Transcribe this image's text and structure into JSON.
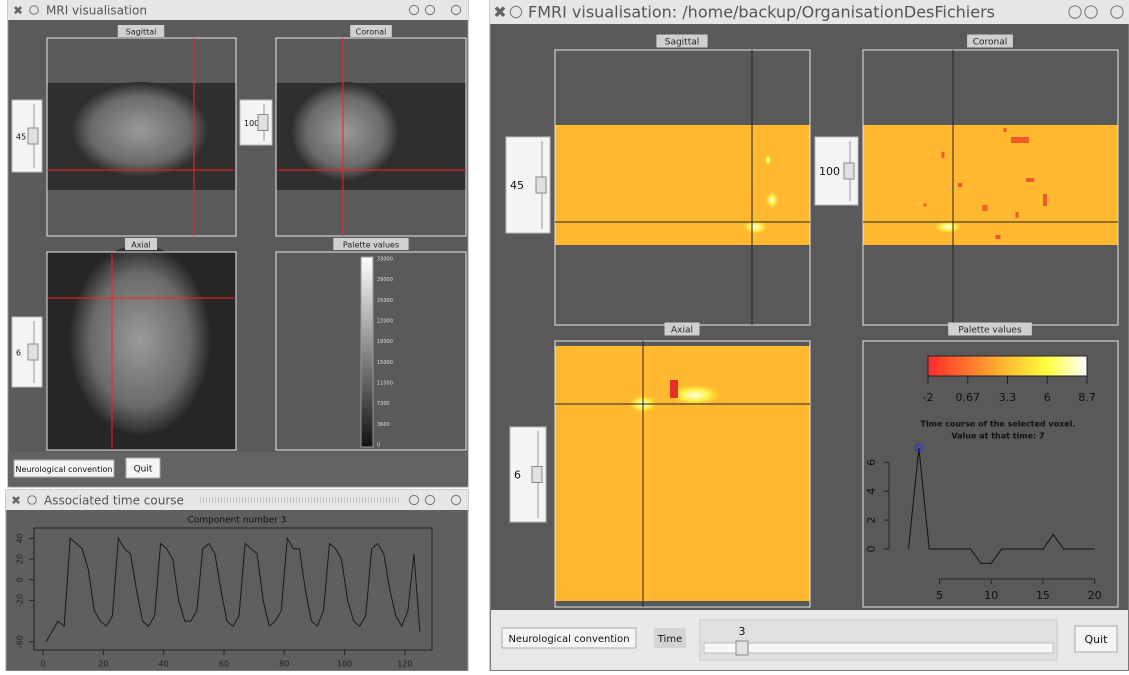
{
  "mri_window": {
    "title": "MRI visualisation",
    "panels": {
      "sagittal": "Sagittal",
      "coronal": "Coronal",
      "axial": "Axial",
      "palette": "Palette values"
    },
    "sliders": [
      45,
      100,
      6
    ],
    "palette_labels": [
      "33000",
      "29000",
      "25000",
      "22000",
      "18000",
      "15000",
      "11000",
      "7300",
      "3600",
      "0"
    ],
    "buttons": {
      "convention": "Neurological convention",
      "quit": "Quit"
    }
  },
  "time_window": {
    "title": "Associated time course"
  },
  "fmri_window": {
    "title": "FMRI visualisation: /home/backup/OrganisationDesFichiers",
    "panels": {
      "sagittal": "Sagittal",
      "coronal": "Coronal",
      "axial": "Axial",
      "palette": "Palette values"
    },
    "sliders": [
      45,
      100,
      6
    ],
    "palette_labels": [
      "-2",
      "0.67",
      "3.3",
      "6",
      "8.7"
    ],
    "buttons": {
      "convention": "Neurological convention",
      "quit": "Quit"
    },
    "time_label": "Time",
    "time_value": 3
  },
  "chart_data": [
    {
      "type": "line",
      "title": "Component number 3",
      "x": [
        1,
        3,
        5,
        7,
        9,
        11,
        13,
        15,
        17,
        19,
        21,
        23,
        25,
        27,
        29,
        31,
        33,
        35,
        37,
        39,
        41,
        43,
        45,
        47,
        49,
        51,
        53,
        55,
        57,
        59,
        61,
        63,
        65,
        67,
        69,
        71,
        73,
        75,
        77,
        79,
        81,
        83,
        85,
        87,
        89,
        91,
        93,
        95,
        97,
        99,
        101,
        103,
        105,
        107,
        109,
        111,
        113,
        115,
        117,
        119,
        121,
        123,
        125
      ],
      "values": [
        -60,
        -50,
        -40,
        -45,
        40,
        35,
        30,
        10,
        -30,
        -40,
        -45,
        -35,
        40,
        30,
        25,
        -10,
        -40,
        -45,
        -35,
        35,
        30,
        20,
        -20,
        -40,
        -40,
        -30,
        30,
        35,
        25,
        -10,
        -40,
        -45,
        -35,
        35,
        30,
        25,
        -20,
        -45,
        -40,
        -30,
        40,
        30,
        30,
        -10,
        -40,
        -45,
        -30,
        35,
        30,
        20,
        -20,
        -40,
        -45,
        -35,
        30,
        35,
        25,
        -10,
        -35,
        -45,
        -30,
        25,
        -50
      ],
      "color": "#1a1a1a",
      "xlim": [
        -3,
        129
      ],
      "ylim": [
        -68,
        50
      ],
      "xticks": [
        0,
        20,
        40,
        60,
        80,
        100,
        120
      ],
      "yticks": [
        -60,
        -20,
        0,
        20,
        40
      ]
    },
    {
      "type": "line",
      "title": "Time course of the selected voxel.",
      "subtitle": "Value at that time: 7",
      "x": [
        2,
        3,
        4,
        5,
        6,
        7,
        8,
        9,
        10,
        11,
        12,
        13,
        14,
        15,
        16,
        17,
        18,
        19,
        20
      ],
      "values": [
        0,
        7,
        0,
        0,
        0,
        0,
        0,
        -1,
        -1,
        0,
        0,
        0,
        0,
        0,
        1,
        0,
        0,
        0,
        0
      ],
      "color": "#111111",
      "xlim": [
        0.5,
        21
      ],
      "ylim": [
        -1.8,
        7.2
      ],
      "xticks": [
        5,
        10,
        15,
        20
      ],
      "yticks": [
        0,
        2,
        4,
        6
      ]
    }
  ]
}
